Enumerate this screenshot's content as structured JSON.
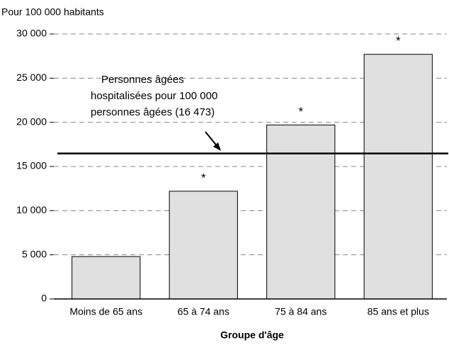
{
  "chart_data": {
    "type": "bar",
    "y_axis_label": "Pour 100 000 habitants",
    "x_axis_label": "Groupe d'âge",
    "categories": [
      "Moins de 65 ans",
      "65 à 74 ans",
      "75 à 84 ans",
      "85 ans et plus"
    ],
    "values": [
      4800,
      12200,
      19700,
      27700
    ],
    "markers": [
      null,
      "*",
      "*",
      "*"
    ],
    "color": "#e0e0e0",
    "ylim": [
      0,
      30000
    ],
    "yticks": [
      0,
      {
        "value": 5000,
        "label": "5 000"
      },
      {
        "value": 10000,
        "label": "10 000"
      },
      {
        "value": 15000,
        "label": "15 000"
      },
      {
        "value": 20000,
        "label": "20 000"
      },
      {
        "value": 25000,
        "label": "25 000"
      },
      {
        "value": 30000,
        "label": "30 000"
      }
    ],
    "grid": true,
    "reference_line": {
      "value": 16473,
      "label_lines": [
        "Personnes âgées",
        "hospitalisées pour 100 000",
        "personnes âgées (16 473)"
      ]
    }
  }
}
